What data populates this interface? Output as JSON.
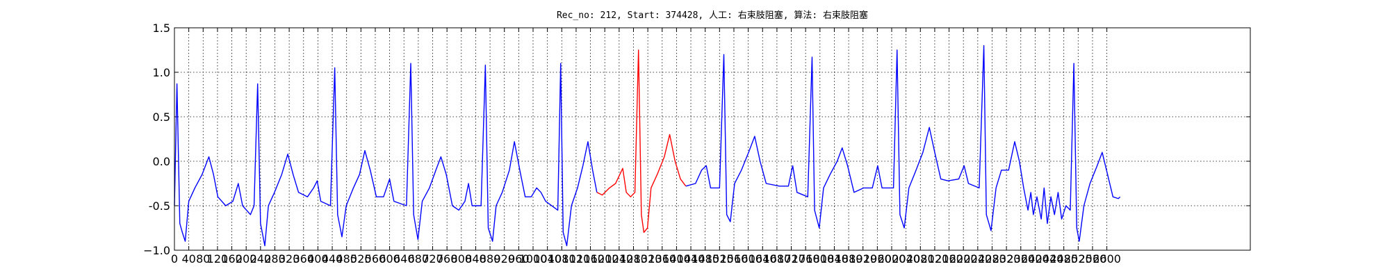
{
  "chart_data": {
    "type": "line",
    "title": "Rec_no: 212, Start: 374428, 人工: 右束肢阻塞, 算法: 右束肢阻塞",
    "xlim": [
      0,
      3000
    ],
    "xticks": [
      0,
      40,
      80,
      120,
      160,
      200,
      240,
      280,
      320,
      360,
      400,
      440,
      480,
      520,
      560,
      600,
      640,
      680,
      720,
      760,
      800,
      840,
      880,
      920,
      960,
      1000,
      1040,
      1080,
      1120,
      1160,
      1200,
      1240,
      1280,
      1320,
      1360,
      1400,
      1440,
      1480,
      1520,
      1560,
      1600,
      1640,
      1680,
      1720,
      1760,
      1800,
      1840,
      1880,
      1920,
      1960,
      2000,
      2040,
      2080,
      2120,
      2160,
      2200,
      2240,
      2280,
      2320,
      2360,
      2400,
      2440,
      2480,
      2520,
      2560,
      2600
    ],
    "ylim": [
      -1.0,
      1.5
    ],
    "yticks": [
      {
        "value": -1.0,
        "label": "−1.0"
      },
      -0.5,
      {
        "value": 0.0,
        "label": "0.0"
      },
      0.5,
      {
        "value": 1.0,
        "label": "1.0"
      },
      1.5
    ],
    "grid": true,
    "series": [
      {
        "color": "#0000ff",
        "x": [
          0,
          7,
          15,
          22,
          30,
          40,
          57,
          77,
          96,
          109,
          121,
          143,
          163,
          178,
          190,
          212,
          222,
          232,
          240,
          252,
          262,
          279,
          299,
          316,
          331,
          346,
          371,
          388,
          398,
          408,
          435,
          447,
          455,
          467,
          479,
          499,
          516,
          531,
          546,
          563,
          583,
          600,
          612,
          647,
          659,
          667,
          679,
          691,
          711,
          729,
          743,
          758,
          775,
          793,
          810,
          820,
          830,
          855,
          867,
          875,
          887,
          897,
          914,
          934,
          948,
          963,
          978,
          995,
          1010,
          1022,
          1035,
          1069,
          1077,
          1084,
          1094,
          1107,
          1124,
          1139,
          1153,
          1166,
          1178
        ],
        "values": [
          -0.5,
          0.87,
          -0.7,
          -0.8,
          -0.9,
          -0.45,
          -0.3,
          -0.15,
          0.05,
          -0.15,
          -0.4,
          -0.5,
          -0.45,
          -0.25,
          -0.5,
          -0.6,
          -0.5,
          0.87,
          -0.7,
          -0.95,
          -0.5,
          -0.35,
          -0.15,
          0.08,
          -0.15,
          -0.35,
          -0.4,
          -0.3,
          -0.22,
          -0.45,
          -0.5,
          1.05,
          -0.6,
          -0.85,
          -0.5,
          -0.3,
          -0.15,
          0.12,
          -0.1,
          -0.4,
          -0.4,
          -0.2,
          -0.45,
          -0.5,
          1.1,
          -0.6,
          -0.88,
          -0.45,
          -0.3,
          -0.1,
          0.05,
          -0.15,
          -0.5,
          -0.55,
          -0.45,
          -0.25,
          -0.5,
          -0.5,
          1.08,
          -0.75,
          -0.9,
          -0.5,
          -0.35,
          -0.1,
          0.22,
          -0.1,
          -0.4,
          -0.4,
          -0.3,
          -0.35,
          -0.45,
          -0.55,
          1.1,
          -0.8,
          -0.95,
          -0.5,
          -0.3,
          -0.05,
          0.22,
          -0.1,
          -0.35
        ]
      },
      {
        "color": "#ff0000",
        "x": [
          1178,
          1193,
          1213,
          1230,
          1250,
          1260,
          1272,
          1284,
          1294,
          1302,
          1309,
          1319,
          1329,
          1346,
          1366,
          1381,
          1396,
          1411,
          1426
        ],
        "values": [
          -0.35,
          -0.38,
          -0.3,
          -0.25,
          -0.08,
          -0.35,
          -0.4,
          -0.35,
          1.25,
          -0.6,
          -0.8,
          -0.75,
          -0.3,
          -0.15,
          0.05,
          0.3,
          0.0,
          -0.2,
          -0.28
        ]
      },
      {
        "color": "#0000ff",
        "x": [
          1426,
          1453,
          1470,
          1483,
          1495,
          1520,
          1532,
          1540,
          1550,
          1562,
          1581,
          1601,
          1618,
          1633,
          1650,
          1687,
          1712,
          1724,
          1736,
          1766,
          1778,
          1785,
          1798,
          1810,
          1828,
          1848,
          1862,
          1877,
          1895,
          1922,
          1946,
          1961,
          1973,
          2005,
          2015,
          2023,
          2035,
          2048,
          2068,
          2087,
          2105,
          2120,
          2137,
          2157,
          2187,
          2202,
          2214,
          2244,
          2257,
          2264,
          2277,
          2291,
          2306,
          2326,
          2343,
          2356,
          2368,
          2380,
          2388,
          2395,
          2405,
          2417,
          2425,
          2434,
          2444,
          2454,
          2464,
          2474,
          2486,
          2498,
          2508,
          2516,
          2523,
          2536,
          2553,
          2573,
          2587,
          2602,
          2617,
          2632,
          2637
        ],
        "values": [
          -0.28,
          -0.25,
          -0.1,
          -0.05,
          -0.3,
          -0.3,
          1.2,
          -0.6,
          -0.68,
          -0.25,
          -0.1,
          0.1,
          0.28,
          0.0,
          -0.25,
          -0.28,
          -0.28,
          -0.05,
          -0.35,
          -0.4,
          1.17,
          -0.55,
          -0.75,
          -0.3,
          -0.15,
          0.0,
          0.15,
          -0.05,
          -0.35,
          -0.3,
          -0.3,
          -0.05,
          -0.3,
          -0.3,
          1.25,
          -0.6,
          -0.75,
          -0.3,
          -0.1,
          0.1,
          0.38,
          0.1,
          -0.2,
          -0.22,
          -0.2,
          -0.05,
          -0.25,
          -0.3,
          1.3,
          -0.6,
          -0.78,
          -0.3,
          -0.1,
          -0.1,
          0.22,
          0.0,
          -0.3,
          -0.55,
          -0.35,
          -0.6,
          -0.4,
          -0.65,
          -0.3,
          -0.7,
          -0.4,
          -0.6,
          -0.35,
          -0.65,
          -0.5,
          -0.55,
          1.1,
          -0.75,
          -0.9,
          -0.5,
          -0.25,
          -0.05,
          0.1,
          -0.15,
          -0.4,
          -0.42,
          -0.4
        ]
      }
    ]
  }
}
